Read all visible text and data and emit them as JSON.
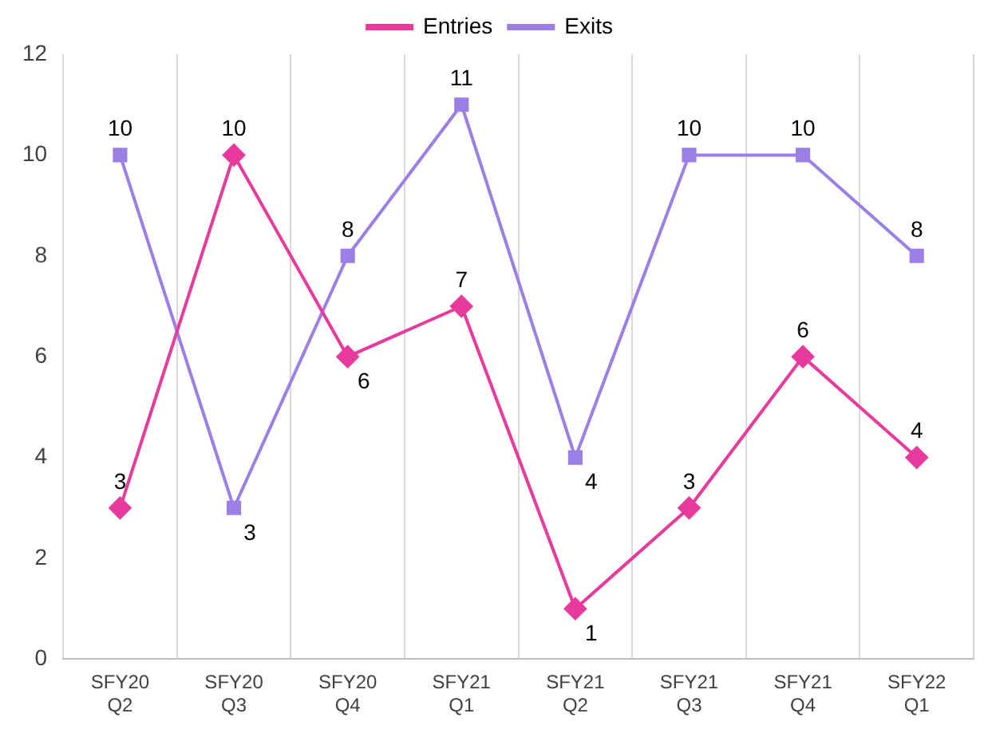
{
  "chart_data": {
    "type": "line",
    "categories": [
      "SFY20 Q2",
      "SFY20 Q3",
      "SFY20 Q4",
      "SFY21 Q1",
      "SFY21 Q2",
      "SFY21 Q3",
      "SFY21 Q4",
      "SFY22 Q1"
    ],
    "series": [
      {
        "name": "Entries",
        "color": "#e8399c",
        "marker": "diamond",
        "values": [
          3,
          10,
          6,
          7,
          1,
          3,
          6,
          4
        ]
      },
      {
        "name": "Exits",
        "color": "#9b7fe4",
        "marker": "square",
        "values": [
          10,
          3,
          8,
          11,
          4,
          10,
          10,
          8
        ]
      }
    ],
    "ylim": [
      0,
      12
    ],
    "yticks": [
      0,
      2,
      4,
      6,
      8,
      10,
      12
    ],
    "grid": "x",
    "legend": "top",
    "data_labels": true,
    "line_style": "solid"
  }
}
